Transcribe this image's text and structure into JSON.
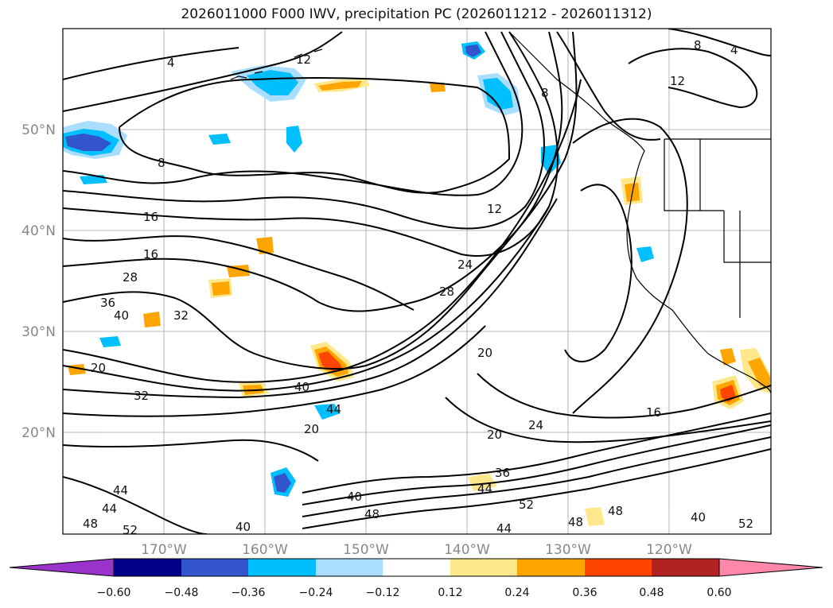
{
  "title": "2026011000 F000 IWV, precipitation PC (2026011212 - 2026011312)",
  "axes": {
    "lat_labels": [
      "50°N",
      "40°N",
      "30°N",
      "20°N"
    ],
    "lon_labels": [
      "170°W",
      "160°W",
      "150°W",
      "140°W",
      "130°W",
      "120°W"
    ]
  },
  "colorbar": {
    "ticks": [
      "−0.60",
      "−0.48",
      "−0.36",
      "−0.24",
      "−0.12",
      "0.12",
      "0.24",
      "0.36",
      "0.48",
      "0.60"
    ],
    "colors": [
      "#9933cc",
      "#00008b",
      "#3355cc",
      "#00bfff",
      "#aadeff",
      "#ffffff",
      "#ffe88c",
      "#ffa500",
      "#ff4500",
      "#b22222",
      "#ff88aa"
    ]
  },
  "contour_labels": [
    "4",
    "8",
    "12",
    "8",
    "4",
    "12",
    "8",
    "16",
    "16",
    "28",
    "36",
    "40",
    "32",
    "12",
    "24",
    "28",
    "20",
    "20",
    "32",
    "40",
    "44",
    "20",
    "24",
    "16",
    "36",
    "44",
    "20",
    "44",
    "44",
    "48",
    "52",
    "40",
    "40",
    "48",
    "44",
    "52",
    "48",
    "48",
    "40",
    "52"
  ]
}
